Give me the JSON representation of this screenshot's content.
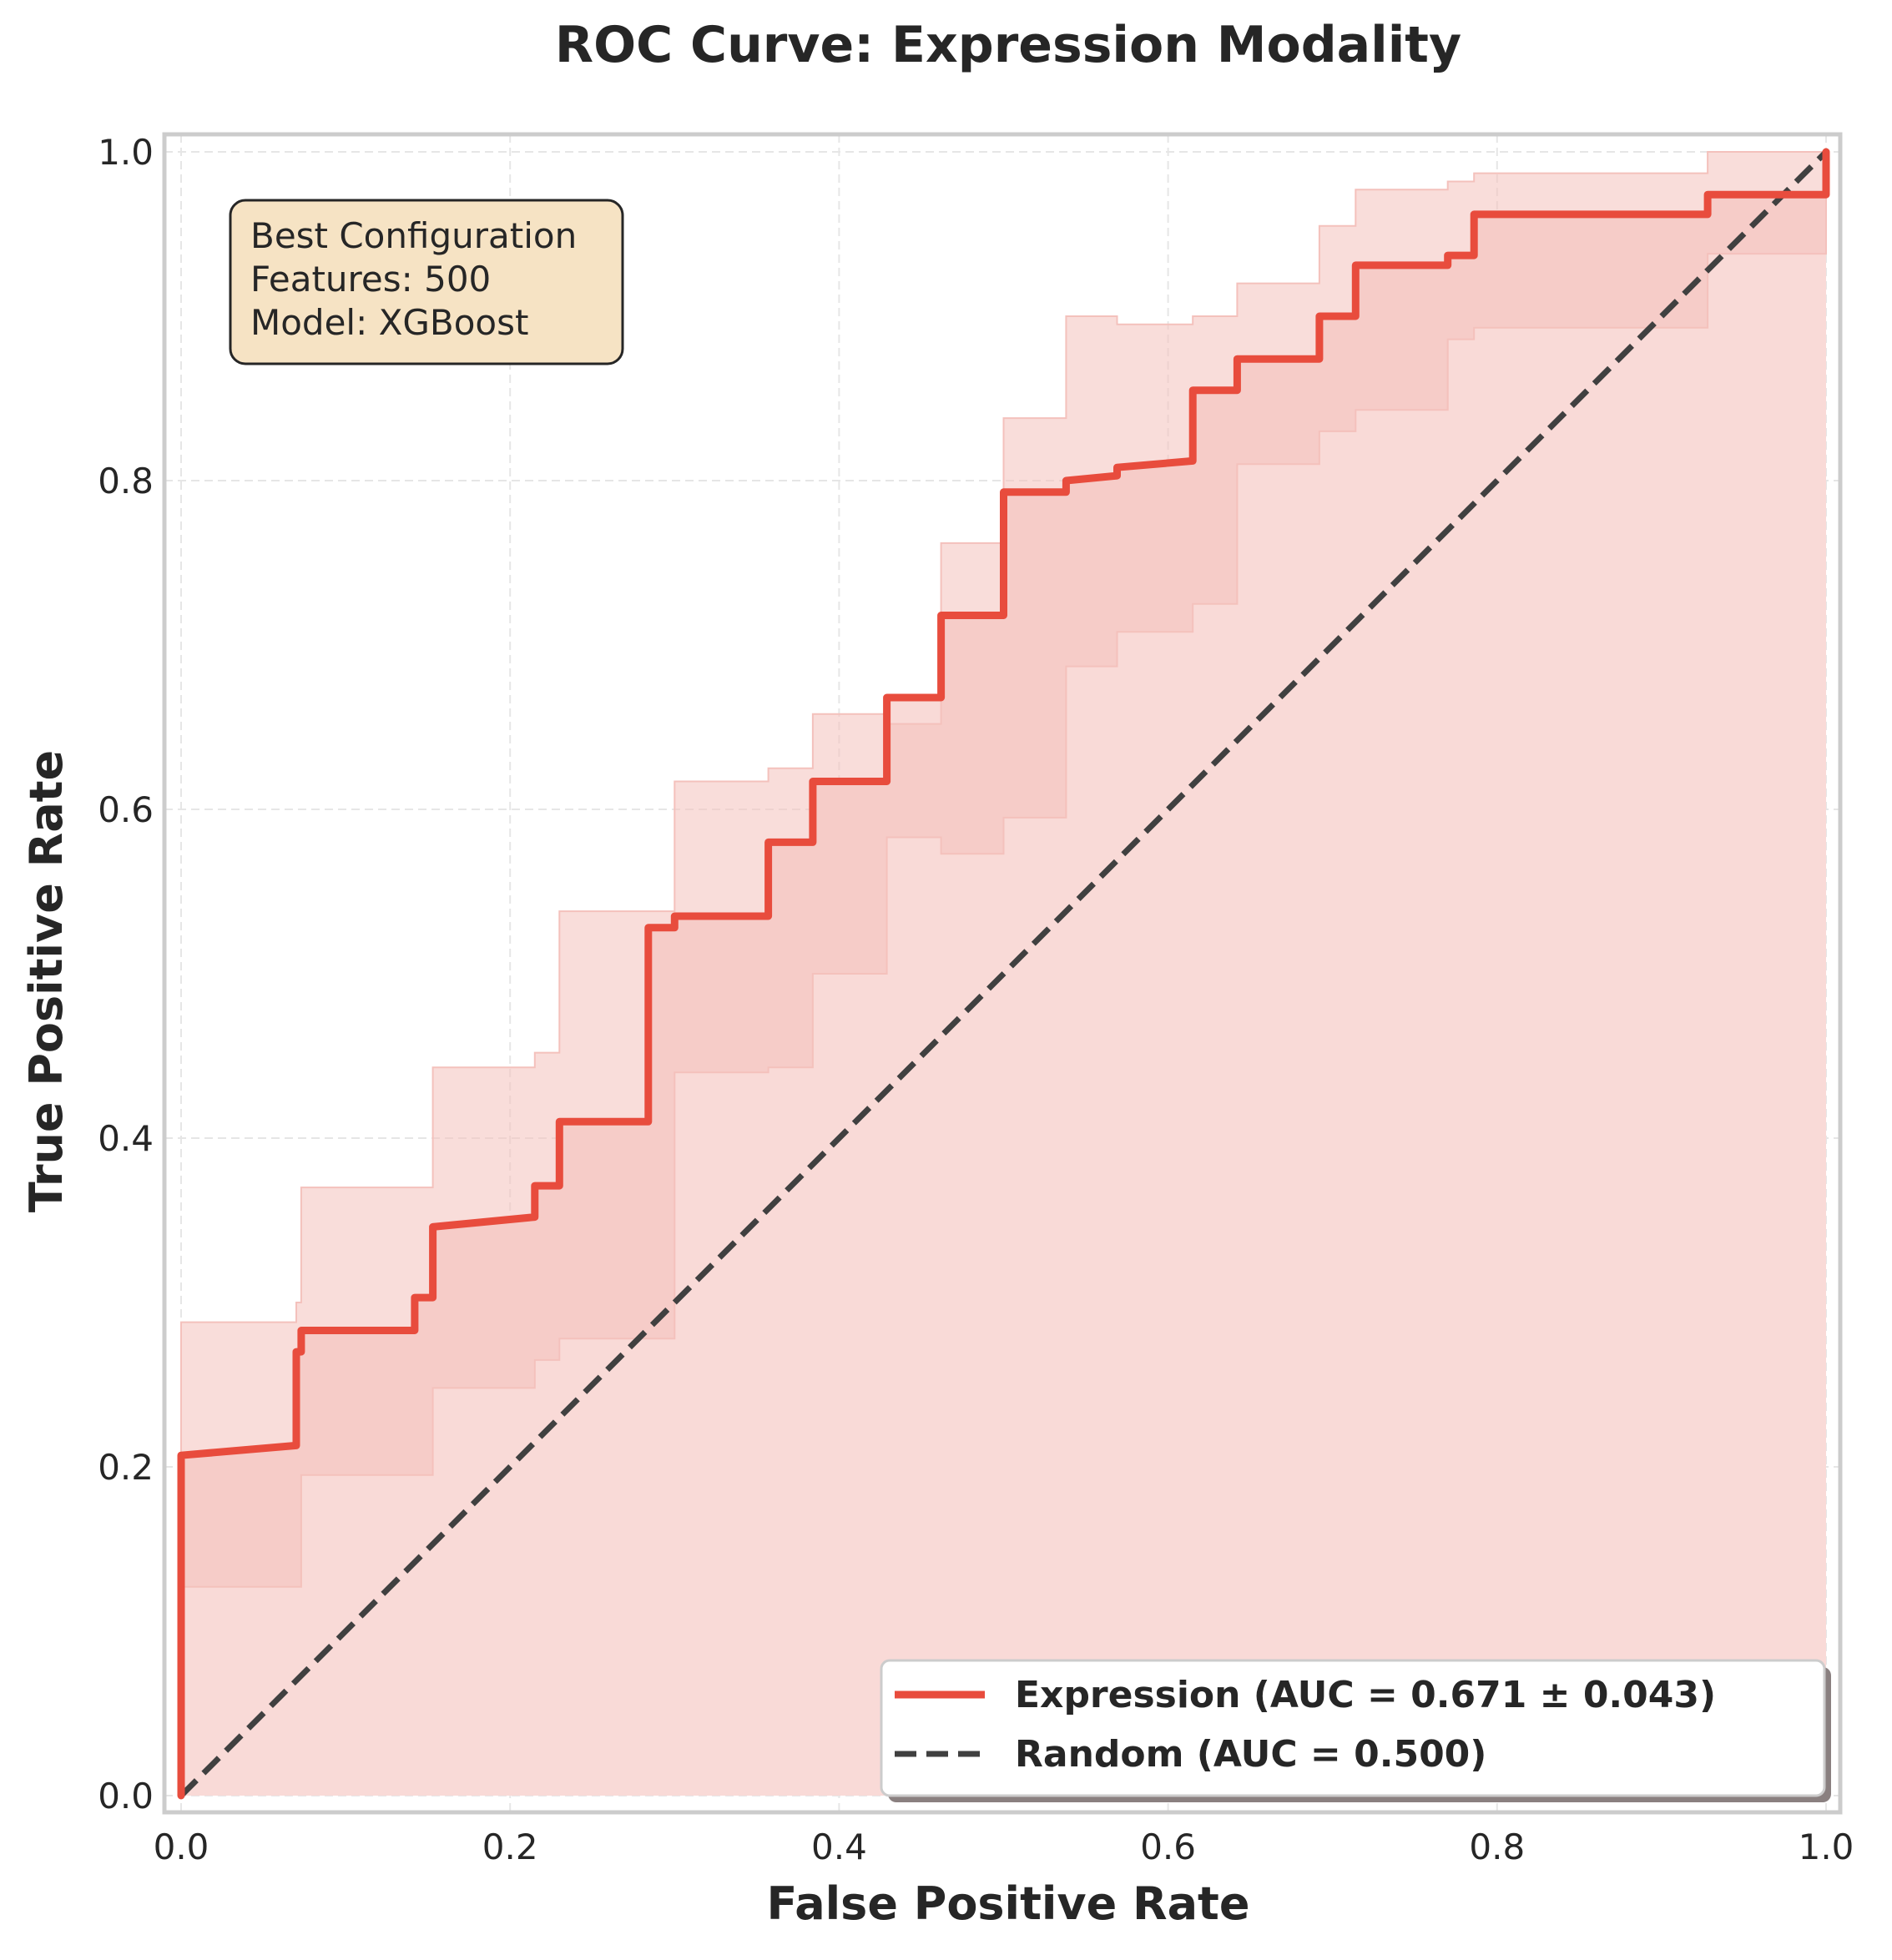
{
  "chart_data": {
    "type": "line",
    "title": "ROC Curve: Expression Modality",
    "xlabel": "False Positive Rate",
    "ylabel": "True Positive Rate",
    "xlim": [
      0.0,
      1.0
    ],
    "ylim": [
      0.0,
      1.0
    ],
    "xticks": [
      "0.0",
      "0.2",
      "0.4",
      "0.6",
      "0.8",
      "1.0"
    ],
    "yticks": [
      "0.0",
      "0.2",
      "0.4",
      "0.6",
      "0.8",
      "1.0"
    ],
    "grid": true,
    "legend_position": "lower-right",
    "annotation": {
      "lines": [
        "Best Configuration",
        "Features: 500",
        "Model: XGBoost"
      ],
      "position": "upper-left"
    },
    "colors": {
      "roc_line": "#e84c3d",
      "roc_band": "#f4c1bc",
      "roc_fill": "#f9dad7",
      "random_line": "#404040",
      "annotation_bg": "#f6e3c4"
    },
    "series": [
      {
        "name": "Expression (AUC = 0.671 ± 0.043)",
        "style": "solid",
        "x": [
          0.0,
          0.0,
          0.07,
          0.07,
          0.073,
          0.073,
          0.142,
          0.142,
          0.153,
          0.153,
          0.215,
          0.215,
          0.23,
          0.23,
          0.284,
          0.284,
          0.3,
          0.3,
          0.357,
          0.357,
          0.384,
          0.384,
          0.429,
          0.429,
          0.462,
          0.462,
          0.5,
          0.5,
          0.538,
          0.538,
          0.569,
          0.569,
          0.615,
          0.615,
          0.642,
          0.642,
          0.692,
          0.692,
          0.714,
          0.714,
          0.77,
          0.77,
          0.786,
          0.786,
          0.928,
          0.928,
          1.0,
          1.0
        ],
        "y": [
          0.0,
          0.207,
          0.213,
          0.27,
          0.27,
          0.283,
          0.283,
          0.303,
          0.303,
          0.346,
          0.352,
          0.371,
          0.371,
          0.41,
          0.41,
          0.528,
          0.528,
          0.535,
          0.535,
          0.58,
          0.58,
          0.617,
          0.617,
          0.668,
          0.668,
          0.718,
          0.718,
          0.793,
          0.793,
          0.8,
          0.803,
          0.808,
          0.812,
          0.855,
          0.855,
          0.874,
          0.874,
          0.9,
          0.9,
          0.931,
          0.931,
          0.937,
          0.937,
          0.962,
          0.962,
          0.974,
          0.974,
          1.0
        ]
      },
      {
        "name": "Random (AUC = 0.500)",
        "style": "dashed",
        "x": [
          0.0,
          1.0
        ],
        "y": [
          0.0,
          1.0
        ]
      }
    ],
    "confidence_band": {
      "x": [
        0.0,
        0.07,
        0.073,
        0.142,
        0.153,
        0.215,
        0.23,
        0.284,
        0.3,
        0.357,
        0.384,
        0.429,
        0.462,
        0.5,
        0.538,
        0.569,
        0.615,
        0.642,
        0.692,
        0.714,
        0.77,
        0.786,
        0.928,
        1.0
      ],
      "upper": [
        0.288,
        0.3,
        0.37,
        0.37,
        0.443,
        0.452,
        0.538,
        0.538,
        0.617,
        0.625,
        0.658,
        0.652,
        0.762,
        0.838,
        0.9,
        0.895,
        0.9,
        0.92,
        0.955,
        0.977,
        0.982,
        0.987,
        1.0,
        1.0
      ],
      "lower": [
        0.127,
        0.127,
        0.195,
        0.195,
        0.248,
        0.265,
        0.278,
        0.278,
        0.44,
        0.443,
        0.5,
        0.583,
        0.573,
        0.595,
        0.687,
        0.708,
        0.725,
        0.81,
        0.83,
        0.843,
        0.886,
        0.893,
        0.938,
        0.95
      ]
    }
  }
}
